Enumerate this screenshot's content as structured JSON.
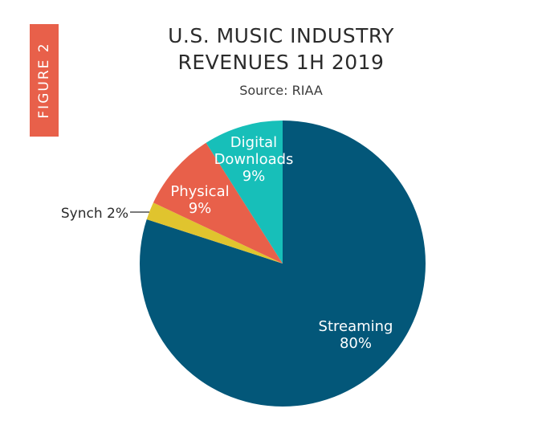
{
  "figure_label": "FIGURE 2",
  "chart_data": {
    "type": "pie",
    "title_lines": [
      "U.S. MUSIC INDUSTRY",
      "REVENUES 1H 2019"
    ],
    "subtitle": "Source: RIAA",
    "slices": [
      {
        "name": "Streaming",
        "value": 80,
        "label": "80%",
        "color": "#035779"
      },
      {
        "name": "Synch",
        "value": 2,
        "label": "2%",
        "color": "#e0c42e"
      },
      {
        "name": "Physical",
        "value": 9,
        "label": "9%",
        "color": "#e8604a"
      },
      {
        "name": "Digital Downloads",
        "value": 9,
        "label": "9%",
        "color": "#17bfb9"
      }
    ],
    "label_color": "#ffffff",
    "legend": "none"
  }
}
